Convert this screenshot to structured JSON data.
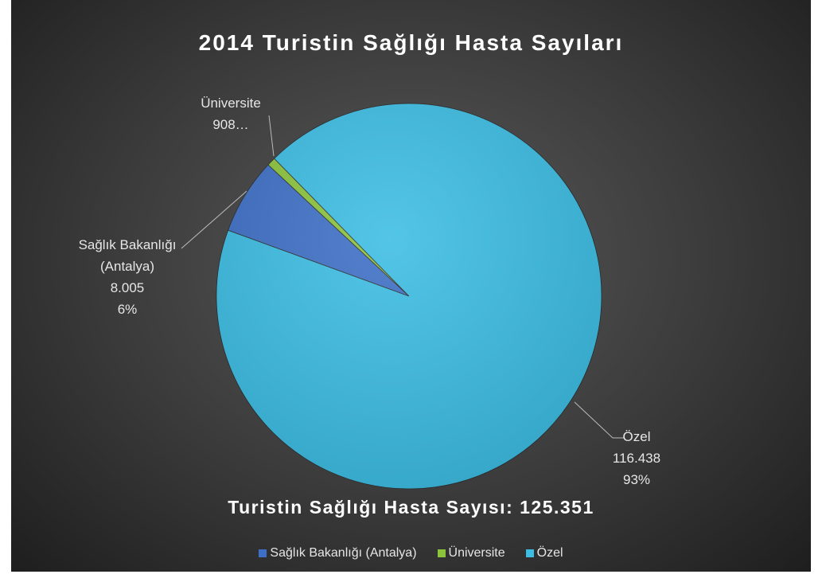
{
  "chart_data": {
    "type": "pie",
    "title": "2014 Turistin Sağlığı Hasta Sayıları",
    "annotation": "Turistin Sağlığı Hasta Sayısı: 125.351",
    "categories": [
      "Sağlık Bakanlığı (Antalya)",
      "Üniversite",
      "Özel"
    ],
    "values": [
      8005,
      908,
      116438
    ],
    "value_labels": [
      "8.005",
      "908…",
      "116.438"
    ],
    "percent_labels": [
      "6%",
      null,
      "93%"
    ],
    "colors": [
      "#3d6fc6",
      "#8cc43c",
      "#3cbde3"
    ],
    "legend": "bottom"
  }
}
